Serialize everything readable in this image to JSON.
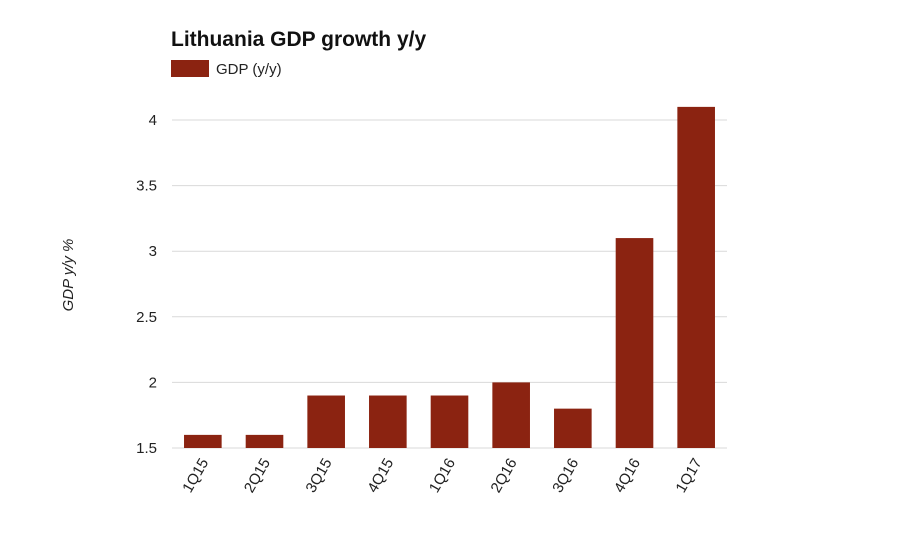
{
  "chart_data": {
    "type": "bar",
    "title": "Lithuania GDP growth y/y",
    "xlabel": "",
    "ylabel": "GDP y/y %",
    "categories": [
      "1Q15",
      "2Q15",
      "3Q15",
      "4Q15",
      "1Q16",
      "2Q16",
      "3Q16",
      "4Q16",
      "1Q17"
    ],
    "series": [
      {
        "name": "GDP (y/y)",
        "color": "#8b2311",
        "values": [
          1.6,
          1.6,
          1.9,
          1.9,
          1.9,
          2.0,
          1.8,
          3.1,
          4.1
        ]
      }
    ],
    "ylim": [
      1.5,
      4.25
    ],
    "yticks": [
      1.5,
      2,
      2.5,
      3,
      3.5,
      4
    ],
    "ytick_labels": [
      "1.5",
      "2",
      "2.5",
      "3",
      "3.5",
      "4"
    ],
    "grid": true,
    "legend_position": "top-left"
  }
}
